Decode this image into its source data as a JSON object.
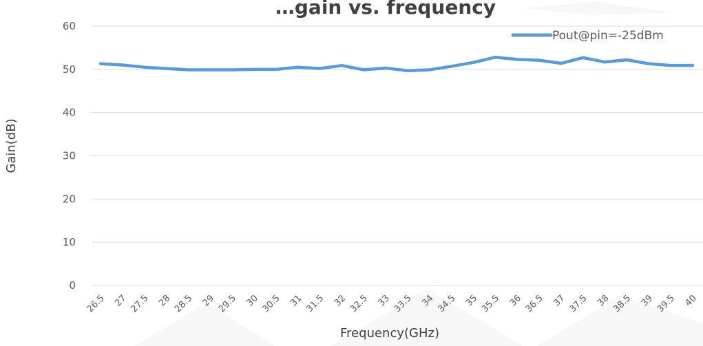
{
  "chart_data": {
    "type": "line",
    "title": "…gain vs. frequency",
    "xlabel": "Frequency(GHz)",
    "ylabel": "Gain(dB)",
    "ylim": [
      0,
      60
    ],
    "yticks": [
      0,
      10,
      20,
      30,
      40,
      50,
      60
    ],
    "grid": "horizontal",
    "legend_position": "top-right",
    "categories": [
      "26.5",
      "27",
      "27.5",
      "28",
      "28.5",
      "29",
      "29.5",
      "30",
      "30.5",
      "31",
      "31.5",
      "32",
      "32.5",
      "33",
      "33.5",
      "34",
      "34.5",
      "35",
      "35.5",
      "36",
      "36.5",
      "37",
      "37.5",
      "38",
      "38.5",
      "39",
      "39.5",
      "40"
    ],
    "series": [
      {
        "name": "Pout@pin=-25dBm",
        "color": "#5b9bd5",
        "values": [
          51.3,
          51.0,
          50.5,
          50.2,
          49.9,
          49.9,
          49.9,
          50.0,
          50.0,
          50.5,
          50.2,
          50.9,
          49.9,
          50.3,
          49.7,
          49.9,
          50.7,
          51.6,
          52.8,
          52.3,
          52.1,
          51.4,
          52.7,
          51.7,
          52.2,
          51.3,
          50.9,
          50.9
        ]
      }
    ]
  }
}
